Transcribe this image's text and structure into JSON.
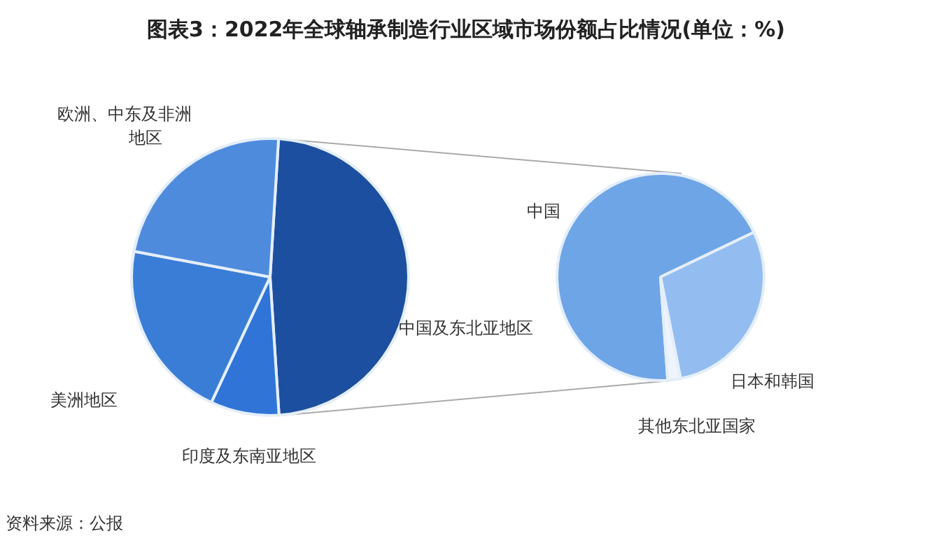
{
  "chart_data": [
    {
      "type": "pie",
      "title": "图表3：2022年全球轴承制造行业区域市场份额占比情况(单位：%)",
      "categories": [
        "中国及东北亚地区",
        "印度及东南亚地区",
        "美洲地区",
        "欧洲、中东及非洲地区"
      ],
      "values": [
        48,
        8,
        21,
        23
      ],
      "colors": [
        "#1c4f9f",
        "#2f74d6",
        "#3a7dd6",
        "#4f8bdc"
      ],
      "legend": false,
      "annotations": [
        "资料来源：公报"
      ]
    },
    {
      "type": "pie",
      "categories": [
        "中国",
        "日本和韩国",
        "其他东北亚国家"
      ],
      "values": [
        69,
        29,
        2
      ],
      "colors": [
        "#6ea5e6",
        "#93bdf0",
        "#eef4fc"
      ],
      "legend": false
    }
  ]
}
